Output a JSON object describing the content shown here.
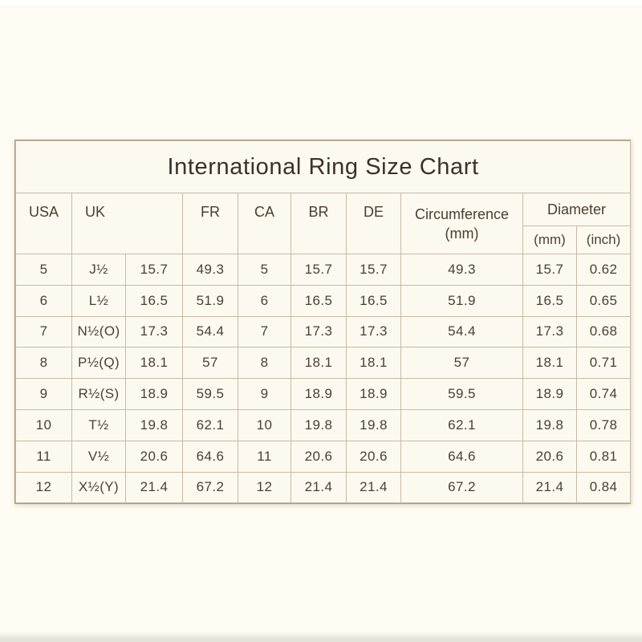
{
  "page": {
    "background_color": "#fffdf3"
  },
  "table": {
    "title": "International Ring Size Chart",
    "header": {
      "usa": "USA",
      "uk": "UK",
      "fr": "FR",
      "ca": "CA",
      "br": "BR",
      "de": "DE",
      "circumference_line1": "Circumference",
      "circumference_line2": "(mm)",
      "diameter": "Diameter",
      "diameter_mm": "(mm)",
      "diameter_inch": "(inch)"
    }
  },
  "chart_data": {
    "type": "table",
    "title": "International Ring Size Chart",
    "columns": [
      "USA",
      "UK",
      "UK (mm)",
      "FR",
      "CA",
      "BR",
      "DE",
      "Circumference (mm)",
      "Diameter (mm)",
      "Diameter (inch)"
    ],
    "column_keys": [
      "usa",
      "uk",
      "uk-mm",
      "fr",
      "ca",
      "br",
      "de",
      "circumference-mm",
      "diameter-mm",
      "diameter-inch"
    ],
    "rows": [
      [
        "5",
        "J½",
        "15.7",
        "49.3",
        "5",
        "15.7",
        "15.7",
        "49.3",
        "15.7",
        "0.62"
      ],
      [
        "6",
        "L½",
        "16.5",
        "51.9",
        "6",
        "16.5",
        "16.5",
        "51.9",
        "16.5",
        "0.65"
      ],
      [
        "7",
        "N½(O)",
        "17.3",
        "54.4",
        "7",
        "17.3",
        "17.3",
        "54.4",
        "17.3",
        "0.68"
      ],
      [
        "8",
        "P½(Q)",
        "18.1",
        "57",
        "8",
        "18.1",
        "18.1",
        "57",
        "18.1",
        "0.71"
      ],
      [
        "9",
        "R½(S)",
        "18.9",
        "59.5",
        "9",
        "18.9",
        "18.9",
        "59.5",
        "18.9",
        "0.74"
      ],
      [
        "10",
        "T½",
        "19.8",
        "62.1",
        "10",
        "19.8",
        "19.8",
        "62.1",
        "19.8",
        "0.78"
      ],
      [
        "11",
        "V½",
        "20.6",
        "64.6",
        "11",
        "20.6",
        "20.6",
        "64.6",
        "20.6",
        "0.81"
      ],
      [
        "12",
        "X½(Y)",
        "21.4",
        "67.2",
        "12",
        "21.4",
        "21.4",
        "67.2",
        "21.4",
        "0.84"
      ]
    ]
  },
  "colors": {
    "page_background": "#fffdf3",
    "card_background": "#fcfaef",
    "grid_lines": "#c7baa7",
    "outer_border": "#a79a87",
    "text": "#4a4135",
    "title_text": "#3a3228",
    "bottom_edge": "#e4e3d9"
  }
}
